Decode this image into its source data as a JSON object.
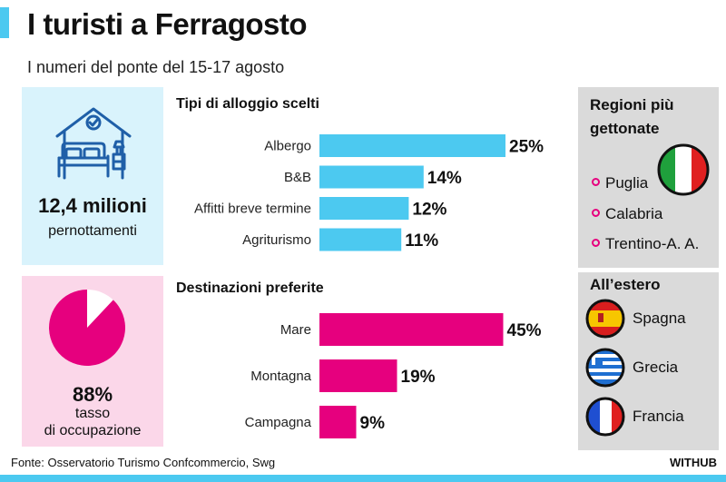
{
  "header": {
    "title": "I turisti a Ferragosto",
    "subtitle": "I numeri del ponte del 15-17 agosto"
  },
  "stays": {
    "value": "12,4 milioni",
    "label": "pernottamenti",
    "icon": "bed-house-icon"
  },
  "occupancy": {
    "value": "88%",
    "label_line1": "tasso",
    "label_line2": "di occupazione",
    "fraction": 0.88
  },
  "regions": {
    "title_line1": "Regioni più",
    "title_line2": "gettonate",
    "items": [
      "Puglia",
      "Calabria",
      "Trentino-A. A."
    ],
    "flag_icon": "italy-flag-icon"
  },
  "abroad": {
    "title": "All’estero",
    "items": [
      {
        "name": "Spagna",
        "flag": "spain-flag-icon"
      },
      {
        "name": "Grecia",
        "flag": "greece-flag-icon"
      },
      {
        "name": "Francia",
        "flag": "france-flag-icon"
      }
    ]
  },
  "chart_data": [
    {
      "type": "bar",
      "orientation": "horizontal",
      "title": "Tipi di alloggio scelti",
      "categories": [
        "Albergo",
        "B&B",
        "Affitti breve termine",
        "Agriturismo"
      ],
      "values": [
        25,
        14,
        12,
        11
      ],
      "value_labels": [
        "25%",
        "14%",
        "12%",
        "11%"
      ],
      "unit": "%",
      "color": "#4cc9f0"
    },
    {
      "type": "bar",
      "orientation": "horizontal",
      "title": "Destinazioni preferite",
      "categories": [
        "Mare",
        "Montagna",
        "Campagna"
      ],
      "values": [
        45,
        19,
        9
      ],
      "value_labels": [
        "45%",
        "19%",
        "9%"
      ],
      "unit": "%",
      "color": "#e6007e"
    }
  ],
  "footer": {
    "source": "Fonte: Osservatorio Turismo Confcommercio, Swg",
    "brand": "WITHUB"
  },
  "colors": {
    "cyan": "#4cc9f0",
    "panel_cyan": "#d9f3fc",
    "magenta": "#e6007e",
    "panel_pink": "#fbd7e9",
    "side_gray": "#dadada",
    "icon_blue": "#1f5fa8"
  }
}
